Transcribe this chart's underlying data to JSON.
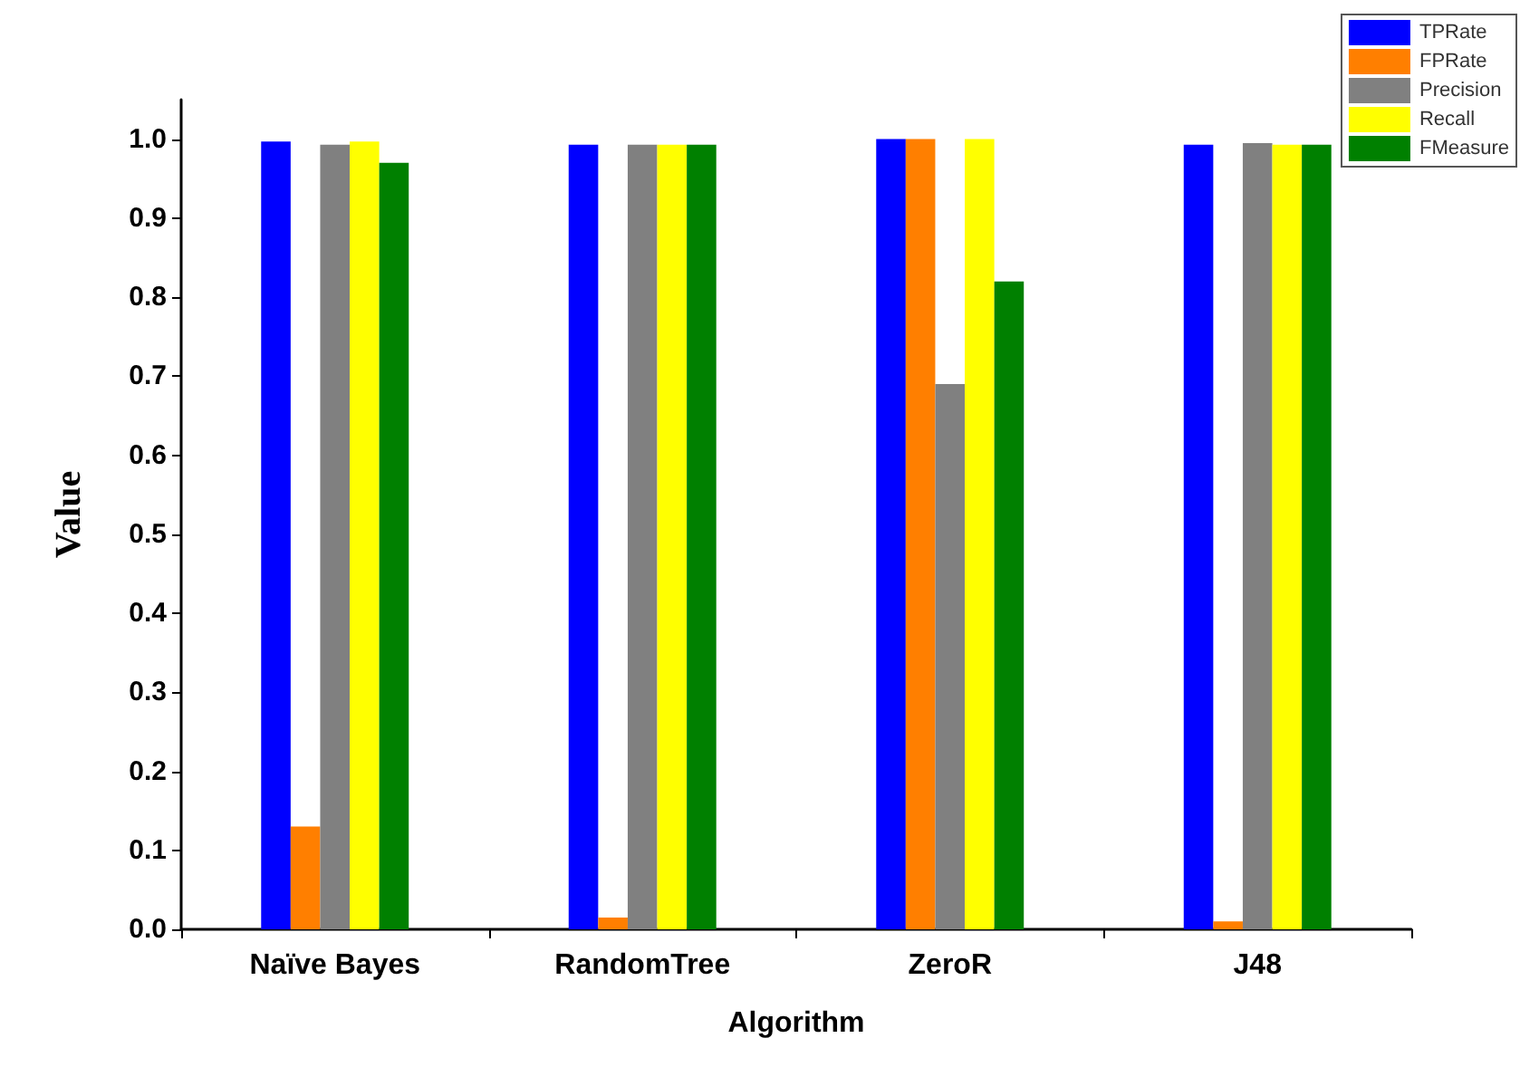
{
  "chart_data": {
    "type": "bar",
    "xlabel": "Algorithm",
    "ylabel": "Value",
    "categories": [
      "Naïve Bayes",
      "RandomTree",
      "ZeroR",
      "J48"
    ],
    "series": [
      {
        "name": "TPRate",
        "color": "#0000ff",
        "values": [
          0.997,
          0.993,
          1.0,
          0.993
        ]
      },
      {
        "name": "FPRate",
        "color": "#ff7f00",
        "values": [
          0.13,
          0.015,
          1.0,
          0.01
        ]
      },
      {
        "name": "Precision",
        "color": "#808080",
        "values": [
          0.993,
          0.993,
          0.69,
          0.995
        ]
      },
      {
        "name": "Recall",
        "color": "#ffff00",
        "values": [
          0.997,
          0.993,
          1.0,
          0.993
        ]
      },
      {
        "name": "FMeasure",
        "color": "#008000",
        "values": [
          0.97,
          0.993,
          0.82,
          0.993
        ]
      }
    ],
    "ylim": [
      0,
      1.05
    ],
    "yticks": [
      {
        "value": 0,
        "label": "0.0"
      },
      {
        "value": 0.1,
        "label": "0.1"
      },
      {
        "value": 0.2,
        "label": "0.2"
      },
      {
        "value": 0.3,
        "label": "0.3"
      },
      {
        "value": 0.4,
        "label": "0.4"
      },
      {
        "value": 0.5,
        "label": "0.5"
      },
      {
        "value": 0.6,
        "label": "0.6"
      },
      {
        "value": 0.7,
        "label": "0.7"
      },
      {
        "value": 0.8,
        "label": "0.8"
      },
      {
        "value": 0.9,
        "label": "0.9"
      },
      {
        "value": 1,
        "label": "1.0"
      }
    ],
    "grid": false,
    "legend": "top right"
  }
}
